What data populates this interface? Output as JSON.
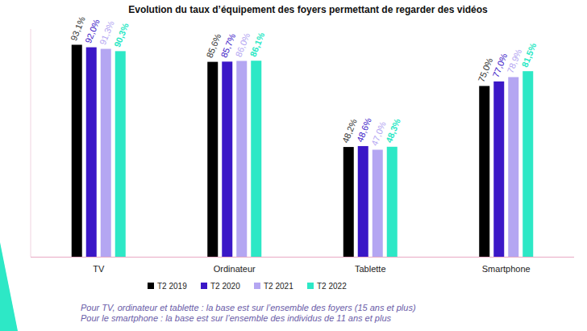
{
  "chart_data": {
    "type": "bar",
    "title": "Evolution du taux d’équipement des foyers permettant de regarder des vidéos",
    "categories": [
      "TV",
      "Ordinateur",
      "Tablette",
      "Smartphone"
    ],
    "series": [
      {
        "name": "T2 2019",
        "color": "#000000",
        "values": [
          93.1,
          85.6,
          48.2,
          75.0
        ],
        "value_labels": [
          "93,1%",
          "85,6%",
          "48,2%",
          "75,0%"
        ]
      },
      {
        "name": "T2 2020",
        "color": "#3b17c7",
        "values": [
          92.0,
          85.7,
          48.6,
          77.0
        ],
        "value_labels": [
          "92,0%",
          "85,7%",
          "48,6%",
          "77,0%"
        ]
      },
      {
        "name": "T2 2021",
        "color": "#b4a6f2",
        "values": [
          91.3,
          86.0,
          47.0,
          78.9
        ],
        "value_labels": [
          "91,3%",
          "86,0%",
          "47,0%",
          "78,9%"
        ]
      },
      {
        "name": "T2 2022",
        "color": "#2de8c6",
        "values": [
          90.3,
          86.1,
          48.3,
          81.5
        ],
        "value_labels": [
          "90,3%",
          "86,1%",
          "48,3%",
          "81,5%"
        ]
      }
    ],
    "ylim": [
      0,
      100
    ],
    "tick_labels": false,
    "data_labels": true,
    "legend": "bottom",
    "annotations": [
      "Pour TV, ordinateur et tablette : la base est sur l’ensemble des foyers (15 ans et plus)",
      "Pour le smartphone : la base est sur l’ensemble des individus de 11 ans et plus"
    ]
  }
}
